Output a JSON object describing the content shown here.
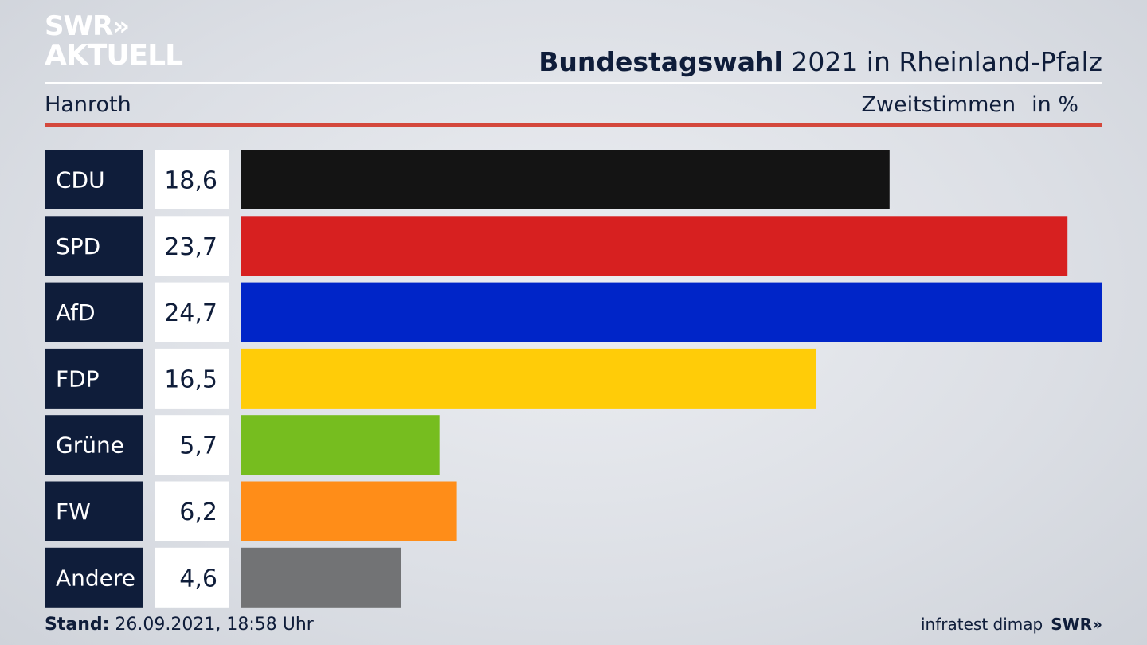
{
  "logo": {
    "line1": "SWR",
    "chevrons": "»",
    "line2": "AKTUELL"
  },
  "title": {
    "bold": "Bundestagswahl",
    "rest": " 2021 in Rheinland-Pfalz"
  },
  "region": "Hanroth",
  "metric": {
    "label": "Zweitstimmen",
    "unit": "in %"
  },
  "chart_data": {
    "type": "bar",
    "orientation": "horizontal",
    "categories": [
      "CDU",
      "SPD",
      "AfD",
      "FDP",
      "Grüne",
      "FW",
      "Andere"
    ],
    "values": [
      18.6,
      23.7,
      24.7,
      16.5,
      5.7,
      6.2,
      4.6
    ],
    "value_labels": [
      "18,6",
      "23,7",
      "24,7",
      "16,5",
      "5,7",
      "6,2",
      "4,6"
    ],
    "colors": [
      "#141414",
      "#d72020",
      "#0025c8",
      "#ffcc08",
      "#76bd1f",
      "#ff8d18",
      "#727375"
    ],
    "xlim": [
      0,
      24.7
    ]
  },
  "footer": {
    "stand_label": "Stand:",
    "stand_value": "26.09.2021, 18:58 Uhr",
    "source": "infratest dimap",
    "brand": "SWR»"
  },
  "colors": {
    "navy": "#0f1d3a",
    "accent_red": "#d4483c"
  }
}
